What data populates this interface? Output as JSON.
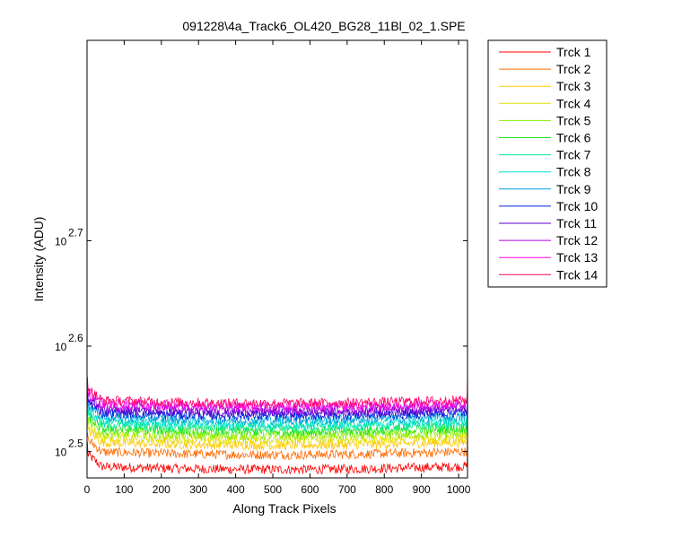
{
  "chart_data": {
    "type": "line",
    "title": "091228\\4a_Track6_OL420_BG28_11Bl_02_1.SPE",
    "xlabel": "Along Track Pixels",
    "ylabel": "Intensity (ADU)",
    "xlim": [
      0,
      1024
    ],
    "ylim_log10": [
      2.475,
      2.89
    ],
    "y_scale": "log",
    "x_ticks": [
      0,
      100,
      200,
      300,
      400,
      500,
      600,
      700,
      800,
      900,
      1000
    ],
    "y_ticks": [
      {
        "base": "10",
        "exponent": "2.5",
        "log10": 2.5
      },
      {
        "base": "10",
        "exponent": "2.6",
        "log10": 2.6
      },
      {
        "base": "10",
        "exponent": "2.7",
        "log10": 2.7
      }
    ],
    "grid": false,
    "legend_position": "outside-right",
    "series": [
      {
        "name": "Trck 1",
        "color": "#ff0000",
        "baseline_log10": 2.486
      },
      {
        "name": "Trck 2",
        "color": "#ff6a00",
        "baseline_log10": 2.5
      },
      {
        "name": "Trck 3",
        "color": "#ffc800",
        "baseline_log10": 2.509
      },
      {
        "name": "Trck 4",
        "color": "#dde000",
        "baseline_log10": 2.514
      },
      {
        "name": "Trck 5",
        "color": "#88ee00",
        "baseline_log10": 2.518
      },
      {
        "name": "Trck 6",
        "color": "#1ee61e",
        "baseline_log10": 2.522
      },
      {
        "name": "Trck 7",
        "color": "#00e890",
        "baseline_log10": 2.526
      },
      {
        "name": "Trck 8",
        "color": "#00e0d0",
        "baseline_log10": 2.529
      },
      {
        "name": "Trck 9",
        "color": "#00a0d8",
        "baseline_log10": 2.533
      },
      {
        "name": "Trck 10",
        "color": "#0020e0",
        "baseline_log10": 2.537
      },
      {
        "name": "Trck 11",
        "color": "#5a00d0",
        "baseline_log10": 2.54
      },
      {
        "name": "Trck 12",
        "color": "#b800e0",
        "baseline_log10": 2.543
      },
      {
        "name": "Trck 13",
        "color": "#ff00e6",
        "baseline_log10": 2.546
      },
      {
        "name": "Trck 14",
        "color": "#ff0066",
        "baseline_log10": 2.549
      }
    ]
  }
}
